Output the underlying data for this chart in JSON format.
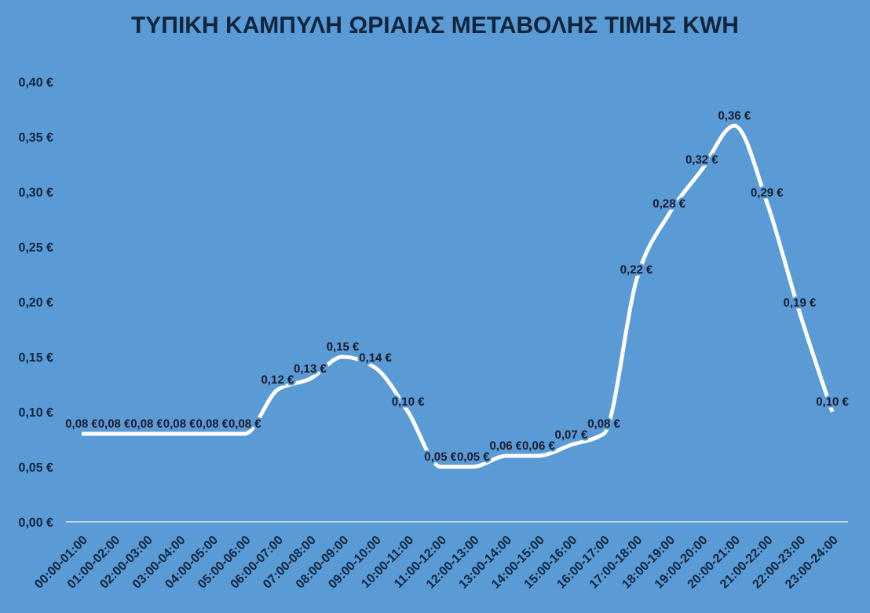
{
  "chart_data": {
    "type": "line",
    "title": "ΤΥΠΙΚΗ ΚΑΜΠΥΛΗ ΩΡΙΑΙΑΣ ΜΕΤΑΒΟΛΗΣ ΤΙΜΗΣ KWH",
    "categories": [
      "00:00-01:00",
      "01:00-02:00",
      "02:00-03:00",
      "03:00-04:00",
      "04:00-05:00",
      "05:00-06:00",
      "06:00-07:00",
      "07:00-08:00",
      "08:00-09:00",
      "09:00-10:00",
      "10:00-11:00",
      "11:00-12:00",
      "12:00-13:00",
      "13:00-14:00",
      "14:00-15:00",
      "15:00-16:00",
      "16:00-17:00",
      "17:00-18:00",
      "18:00-19:00",
      "19:00-20:00",
      "20:00-21:00",
      "21:00-22:00",
      "22:00-23:00",
      "23:00-24:00"
    ],
    "series": [
      {
        "color": "#ffffff",
        "values": [
          0.08,
          0.08,
          0.08,
          0.08,
          0.08,
          0.08,
          0.12,
          0.13,
          0.15,
          0.14,
          0.1,
          0.05,
          0.05,
          0.06,
          0.06,
          0.07,
          0.08,
          0.22,
          0.28,
          0.32,
          0.36,
          0.29,
          0.19,
          0.1
        ],
        "value_labels": [
          "0,08 €",
          "0,08 €",
          "0,08 €",
          "0,08 €",
          "0,08 €",
          "0,08 €",
          "0,12 €",
          "0,13 €",
          "0,15 €",
          "0,14 €",
          "0,10 €",
          "0,05 €",
          "0,05 €",
          "0,06 €",
          "0,06 €",
          "0,07 €",
          "0,08 €",
          "0,22 €",
          "0,28 €",
          "0,32 €",
          "0,36 €",
          "0,29 €",
          "0,19 €",
          "0,10 €"
        ]
      }
    ],
    "ylim": [
      0,
      0.4
    ],
    "yticks": [
      {
        "value": 0,
        "label": "0,00 €"
      },
      {
        "value": 0.05,
        "label": "0,05 €"
      },
      {
        "value": 0.1,
        "label": "0,10 €"
      },
      {
        "value": 0.15,
        "label": "0,15 €"
      },
      {
        "value": 0.2,
        "label": "0,20 €"
      },
      {
        "value": 0.25,
        "label": "0,25 €"
      },
      {
        "value": 0.3,
        "label": "0,30 €"
      },
      {
        "value": 0.35,
        "label": "0,35 €"
      },
      {
        "value": 0.4,
        "label": "0,40 €"
      }
    ],
    "grid": false,
    "legend": false,
    "marker": "none",
    "line_style": "solid"
  }
}
